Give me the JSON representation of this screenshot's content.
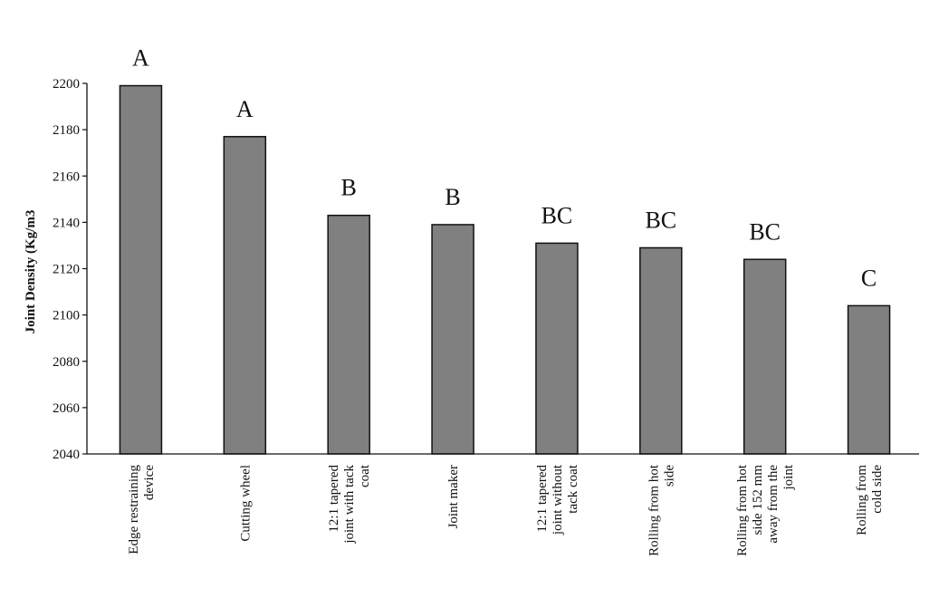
{
  "chart_data": {
    "type": "bar",
    "title": "",
    "xlabel": "",
    "ylabel": "Joint Density (Kg/m3",
    "ylim": [
      2040,
      2200
    ],
    "yticks": [
      2040,
      2060,
      2080,
      2100,
      2120,
      2140,
      2160,
      2180,
      2200
    ],
    "grid": false,
    "legend": "none",
    "categories": [
      [
        "Edge restraining",
        "device"
      ],
      [
        "Cutting wheel"
      ],
      [
        "12:1 tapered",
        "joint with tack",
        "coat"
      ],
      [
        "Joint maker"
      ],
      [
        "12:1 tapered",
        "joint without",
        "tack coat"
      ],
      [
        "Rolling from hot",
        "side"
      ],
      [
        "Rolling from hot",
        "side 152 mm",
        "away from the",
        "joint"
      ],
      [
        "Rolling from",
        "cold side"
      ]
    ],
    "values": [
      2199,
      2177,
      2143,
      2139,
      2131,
      2129,
      2124,
      2104
    ],
    "group_labels": [
      "A",
      "A",
      "B",
      "B",
      "BC",
      "BC",
      "BC",
      "C"
    ],
    "colors": {
      "bar_fill": "#808080",
      "bar_stroke": "#111111",
      "axis": "#111111"
    }
  }
}
